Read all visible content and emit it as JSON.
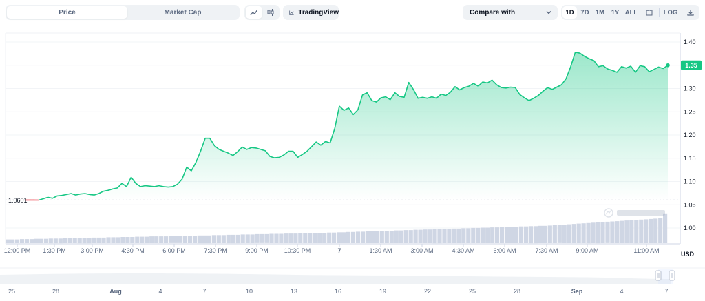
{
  "tabs": {
    "price_label": "Price",
    "market_cap_label": "Market Cap"
  },
  "view_toggle": {
    "line_icon": "line-chart-icon",
    "candle_icon": "candlestick-icon"
  },
  "tradingview": {
    "label": "TradingView",
    "icon": "tradingview-chart-icon"
  },
  "compare": {
    "label": "Compare with",
    "icon": "chevron-down-icon"
  },
  "ranges": {
    "items": [
      "1D",
      "7D",
      "1M",
      "1Y",
      "ALL"
    ],
    "active": "1D",
    "calendar_icon": "calendar-icon",
    "log_label": "LOG",
    "download_icon": "download-icon"
  },
  "colors": {
    "line_up": "#16c784",
    "line_down": "#ea3943",
    "price_badge": "#16c784",
    "volume": "#cfd6e4",
    "navigator_fill": "#eff2f5"
  },
  "chart_data": {
    "type": "area",
    "currency_label": "USD",
    "open_price_label": "1.0601",
    "current_price_label": "1.35",
    "ylim": [
      0.95,
      1.42
    ],
    "y_ticks": [
      "1.40",
      "1.35",
      "1.30",
      "1.25",
      "1.20",
      "1.15",
      "1.10",
      "1.05",
      "1.00"
    ],
    "x_ticks": [
      "12:00 PM",
      "1:30 PM",
      "3:00 PM",
      "4:30 PM",
      "6:00 PM",
      "7:30 PM",
      "9:00 PM",
      "10:30 PM",
      "7",
      "1:30 AM",
      "3:00 AM",
      "4:30 AM",
      "6:00 AM",
      "7:30 AM",
      "9:00 AM",
      "11:00 AM"
    ],
    "series": [
      {
        "values": [
          1.0601,
          1.0601,
          1.0601,
          1.06,
          1.063,
          1.066,
          1.064,
          1.069,
          1.07,
          1.072,
          1.074,
          1.071,
          1.073,
          1.074,
          1.072,
          1.071,
          1.074,
          1.079,
          1.081,
          1.084,
          1.086,
          1.096,
          1.089,
          1.109,
          1.096,
          1.089,
          1.091,
          1.09,
          1.089,
          1.091,
          1.089,
          1.088,
          1.089,
          1.094,
          1.105,
          1.131,
          1.123,
          1.141,
          1.165,
          1.193,
          1.193,
          1.177,
          1.169,
          1.165,
          1.161,
          1.156,
          1.164,
          1.174,
          1.169,
          1.173,
          1.172,
          1.169,
          1.166,
          1.154,
          1.151,
          1.152,
          1.157,
          1.165,
          1.165,
          1.152,
          1.158,
          1.165,
          1.175,
          1.185,
          1.178,
          1.186,
          1.183,
          1.214,
          1.262,
          1.253,
          1.258,
          1.244,
          1.254,
          1.286,
          1.291,
          1.274,
          1.271,
          1.28,
          1.282,
          1.276,
          1.291,
          1.283,
          1.281,
          1.313,
          1.298,
          1.279,
          1.281,
          1.279,
          1.282,
          1.279,
          1.288,
          1.285,
          1.292,
          1.304,
          1.297,
          1.302,
          1.305,
          1.311,
          1.305,
          1.314,
          1.312,
          1.318,
          1.308,
          1.302,
          1.301,
          1.303,
          1.302,
          1.287,
          1.28,
          1.274,
          1.279,
          1.285,
          1.294,
          1.302,
          1.298,
          1.303,
          1.308,
          1.321,
          1.347,
          1.378,
          1.376,
          1.369,
          1.364,
          1.36,
          1.347,
          1.349,
          1.342,
          1.339,
          1.335,
          1.347,
          1.344,
          1.348,
          1.335,
          1.349,
          1.347,
          1.336,
          1.341,
          1.346,
          1.343,
          1.35
        ]
      }
    ],
    "volume": [
      0.12,
      0.12,
      0.12,
      0.13,
      0.13,
      0.13,
      0.14,
      0.14,
      0.14,
      0.15,
      0.15,
      0.15,
      0.16,
      0.16,
      0.16,
      0.17,
      0.17,
      0.17,
      0.18,
      0.18,
      0.18,
      0.19,
      0.19,
      0.19,
      0.2,
      0.2,
      0.2,
      0.21,
      0.21,
      0.21,
      0.22,
      0.22,
      0.22,
      0.22,
      0.23,
      0.23,
      0.23,
      0.24,
      0.24,
      0.24,
      0.25,
      0.25,
      0.25,
      0.26,
      0.26,
      0.26,
      0.27,
      0.27,
      0.27,
      0.28,
      0.28,
      0.28,
      0.29,
      0.29,
      0.29,
      0.3,
      0.3,
      0.3,
      0.31,
      0.31,
      0.31,
      0.32,
      0.32,
      0.32,
      0.33,
      0.33,
      0.33,
      0.34,
      0.34,
      0.35,
      0.35,
      0.36,
      0.36,
      0.37,
      0.37,
      0.38,
      0.38,
      0.39,
      0.39,
      0.4,
      0.4,
      0.41,
      0.41,
      0.42,
      0.42,
      0.43,
      0.43,
      0.44,
      0.44,
      0.45,
      0.45,
      0.46,
      0.46,
      0.47,
      0.47,
      0.48,
      0.48,
      0.49,
      0.49,
      0.5,
      0.5,
      0.51,
      0.51,
      0.52,
      0.52,
      0.53,
      0.53,
      0.54,
      0.54,
      0.55,
      0.55,
      0.56,
      0.56,
      0.57,
      0.58,
      0.59,
      0.6,
      0.61,
      0.62,
      0.63,
      0.64,
      0.65,
      0.66,
      0.67,
      0.68,
      0.69,
      0.7,
      0.71,
      0.72,
      0.73,
      0.74,
      0.75,
      0.76,
      0.77,
      0.78,
      0.79,
      0.8,
      0.96
    ],
    "navigator": {
      "ticks": [
        "25",
        "28",
        "Aug",
        "4",
        "7",
        "10",
        "13",
        "16",
        "19",
        "22",
        "25",
        "28",
        "Sep",
        "4",
        "7"
      ]
    }
  }
}
